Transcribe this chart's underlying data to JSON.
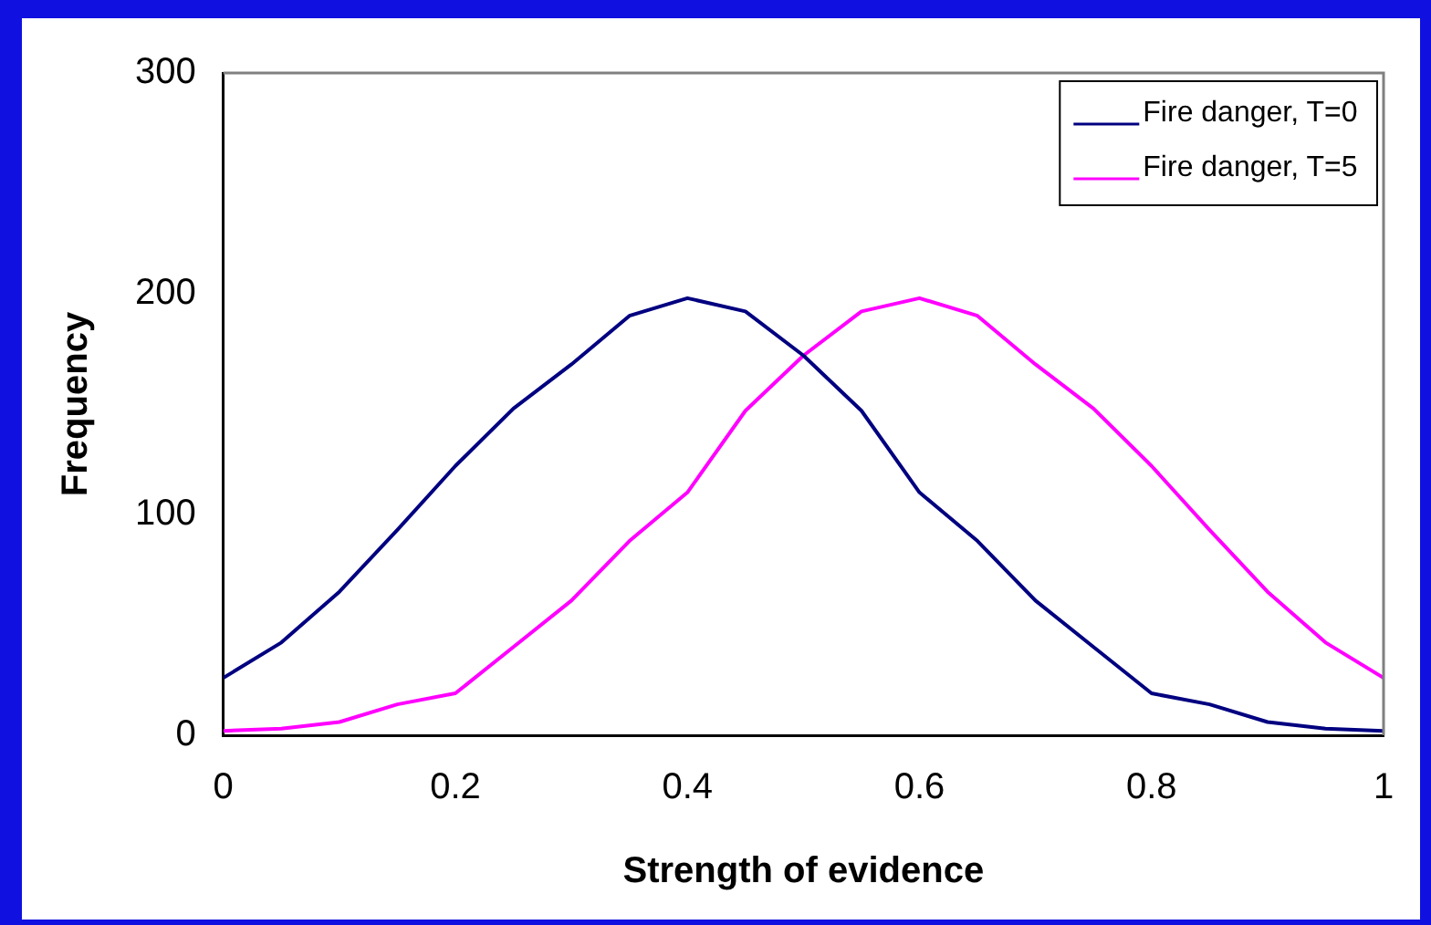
{
  "chart_data": {
    "type": "line",
    "xlabel": "Strength of evidence",
    "ylabel": "Frequency",
    "x": [
      0,
      0.05,
      0.1,
      0.15,
      0.2,
      0.25,
      0.3,
      0.35,
      0.4,
      0.45,
      0.5,
      0.55,
      0.6,
      0.65,
      0.7,
      0.75,
      0.8,
      0.85,
      0.9,
      0.95,
      1
    ],
    "series": [
      {
        "name": "Fire danger, T=0",
        "color": "#000080",
        "values": [
          26,
          42,
          65,
          93,
          122,
          148,
          168,
          190,
          198,
          192,
          172,
          147,
          110,
          88,
          61,
          40,
          19,
          14,
          6,
          3,
          2
        ]
      },
      {
        "name": "Fire danger, T=5",
        "color": "#ff00ff",
        "values": [
          2,
          3,
          6,
          14,
          19,
          40,
          61,
          88,
          110,
          147,
          172,
          192,
          198,
          190,
          168,
          148,
          122,
          93,
          65,
          42,
          26
        ]
      }
    ],
    "xlim": [
      0,
      1
    ],
    "xticks": [
      0,
      0.2,
      0.4,
      0.6,
      0.8,
      1
    ],
    "ylim": [
      0,
      300
    ],
    "yticks": [
      0,
      100,
      200,
      300
    ],
    "grid": false,
    "legend": "top right",
    "marker": "none",
    "line_style": "solid"
  }
}
